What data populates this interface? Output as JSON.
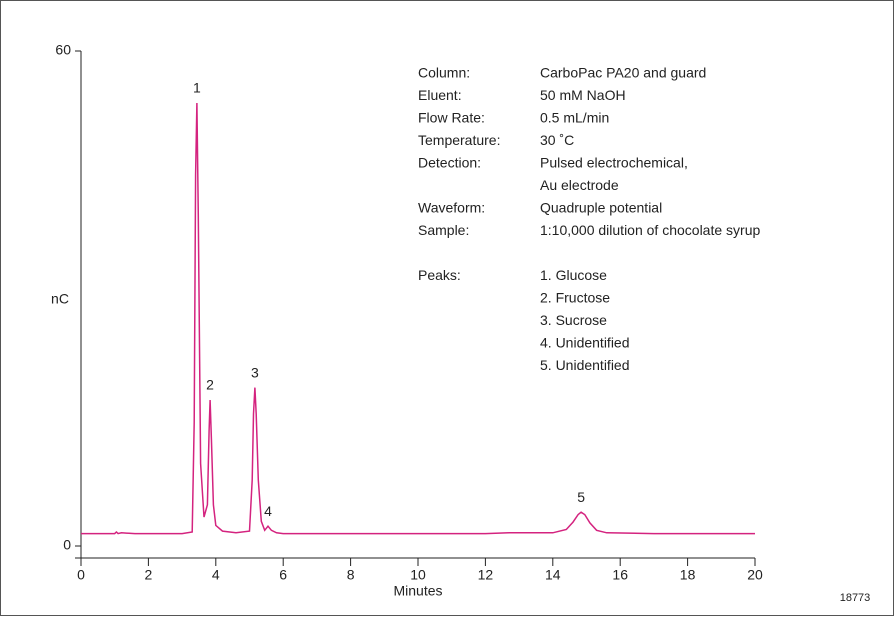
{
  "chart_data": {
    "type": "line",
    "x_label": "Minutes",
    "y_label": "nC",
    "x": [
      0,
      0.5,
      1,
      1.05,
      1.1,
      1.2,
      1.6,
      2,
      3,
      3.3,
      3.36,
      3.4,
      3.44,
      3.48,
      3.55,
      3.65,
      3.75,
      3.8,
      3.83,
      3.87,
      3.93,
      4.0,
      4.2,
      4.6,
      5.0,
      5.08,
      5.12,
      5.16,
      5.2,
      5.26,
      5.35,
      5.45,
      5.55,
      5.65,
      5.8,
      6,
      8,
      10,
      12,
      12.7,
      14,
      14.4,
      14.6,
      14.75,
      14.84,
      14.95,
      15.1,
      15.3,
      15.6,
      17,
      20
    ],
    "series": [
      {
        "name": "Chocolate syrup",
        "color": "#d4237f",
        "values": [
          1.5,
          1.5,
          1.5,
          1.7,
          1.5,
          1.6,
          1.5,
          1.5,
          1.5,
          1.7,
          15,
          45,
          53.7,
          40,
          10,
          3.5,
          5,
          14,
          17.7,
          13,
          5,
          2.5,
          1.8,
          1.6,
          1.8,
          8,
          16,
          19.2,
          16,
          8,
          3,
          1.9,
          2.4,
          1.9,
          1.6,
          1.5,
          1.5,
          1.5,
          1.5,
          1.6,
          1.6,
          2.0,
          2.9,
          3.8,
          4.1,
          3.8,
          2.8,
          1.9,
          1.6,
          1.5,
          1.5
        ]
      }
    ],
    "peaks": [
      {
        "label": "1",
        "x": 3.44,
        "y": 53.7
      },
      {
        "label": "2",
        "x": 3.83,
        "y": 17.7
      },
      {
        "label": "3",
        "x": 5.16,
        "y": 19.2
      },
      {
        "label": "4",
        "x": 5.55,
        "y": 2.4
      },
      {
        "label": "5",
        "x": 14.84,
        "y": 4.1
      }
    ],
    "xlim": [
      0,
      20
    ],
    "xticks": [
      0,
      2,
      4,
      6,
      8,
      10,
      12,
      14,
      16,
      18,
      20
    ],
    "ylim": [
      0,
      60
    ],
    "yticks": [
      0,
      60
    ],
    "conditions": [
      {
        "label": "Column:",
        "lines": [
          "CarboPac PA20 and guard"
        ]
      },
      {
        "label": "Eluent:",
        "lines": [
          "50 mM NaOH"
        ]
      },
      {
        "label": "Flow Rate:",
        "lines": [
          "0.5 mL/min"
        ]
      },
      {
        "label": "Temperature:",
        "lines": [
          "30 ˚C"
        ]
      },
      {
        "label": "Detection:",
        "lines": [
          "Pulsed electrochemical,",
          "Au electrode"
        ]
      },
      {
        "label": "Waveform:",
        "lines": [
          "Quadruple potential"
        ]
      },
      {
        "label": "Sample:",
        "lines": [
          "1:10,000 dilution of chocolate syrup"
        ]
      }
    ],
    "peaks_label": "Peaks:",
    "peak_names": [
      "1. Glucose",
      "2. Fructose",
      "3. Sucrose",
      "4. Unidentified",
      "5. Unidentified"
    ],
    "figure_number": "18773"
  }
}
